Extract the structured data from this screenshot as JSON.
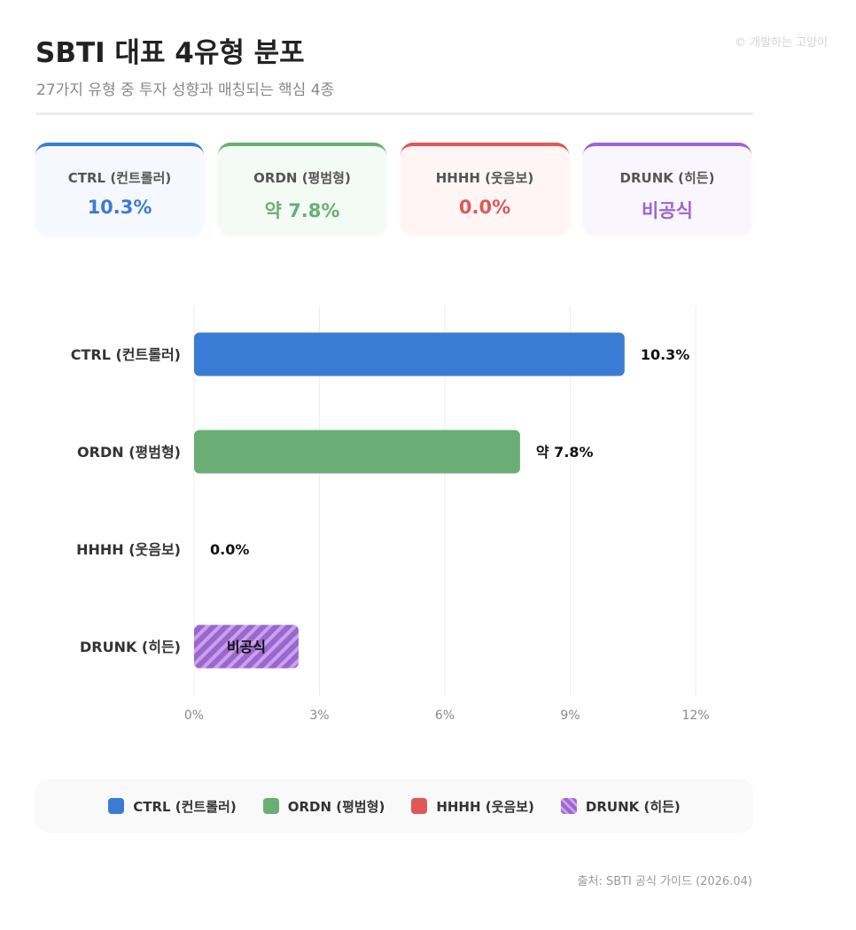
{
  "header": {
    "title": "SBTI 대표 4유형 분포",
    "subtitle": "27가지 유형 중 투자 성향과 매칭되는 핵심 4종",
    "watermark": "© 개발하는 고양이"
  },
  "cards": [
    {
      "label": "CTRL (컨트롤러)",
      "value": "10.3%",
      "color": "#3a7bd5",
      "bg": "#f5f9ff"
    },
    {
      "label": "ORDN (평범형)",
      "value": "약 7.8%",
      "color": "#6aae76",
      "bg": "#f4fbf5"
    },
    {
      "label": "HHHH (웃음보)",
      "value": "0.0%",
      "color": "#e05757",
      "bg": "#fff5f5"
    },
    {
      "label": "DRUNK (히든)",
      "value": "비공식",
      "color": "#9b66d0",
      "bg": "#f9f6fe"
    }
  ],
  "chart_data": {
    "type": "bar",
    "orientation": "horizontal",
    "categories": [
      "CTRL (컨트롤러)",
      "ORDN (평범형)",
      "HHHH (웃음보)",
      "DRUNK (히든)"
    ],
    "values": [
      10.3,
      7.8,
      0.0,
      2.5
    ],
    "data_labels": [
      "10.3%",
      "약 7.8%",
      "0.0%",
      "비공식"
    ],
    "colors": [
      "#3a7bd5",
      "#6aae76",
      "#e05757",
      "#9b66d0"
    ],
    "striped": [
      false,
      false,
      false,
      true
    ],
    "xlim": [
      0,
      12
    ],
    "xticks": [
      0,
      3,
      6,
      9,
      12
    ],
    "xtick_labels": [
      "0%",
      "3%",
      "6%",
      "9%",
      "12%"
    ],
    "grid": true,
    "legend_position": "bottom"
  },
  "legend": [
    {
      "label": "CTRL (컨트롤러)",
      "color": "#3a7bd5"
    },
    {
      "label": "ORDN (평범형)",
      "color": "#6aae76"
    },
    {
      "label": "HHHH (웃음보)",
      "color": "#e05757"
    },
    {
      "label": "DRUNK (히든)",
      "color": "#9b66d0",
      "striped": true
    }
  ],
  "footer": {
    "source": "출처: SBTI 공식 가이드 (2026.04)"
  }
}
